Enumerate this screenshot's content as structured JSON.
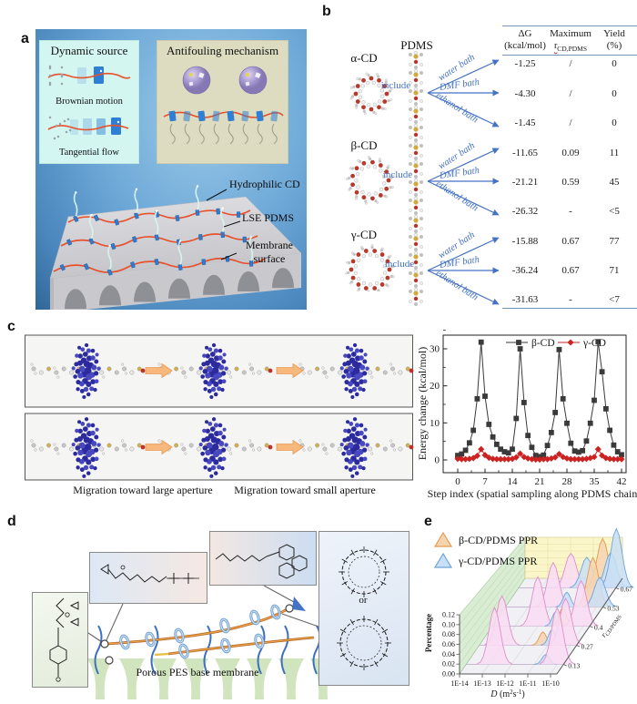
{
  "figure": {
    "panel_labels": {
      "a": "a",
      "b": "b",
      "c": "c",
      "d": "d",
      "e": "e"
    }
  },
  "panel_a": {
    "dynamic_box": {
      "title": "Dynamic source",
      "captions": [
        "Brownian motion",
        "Tangential flow"
      ]
    },
    "antifouling_box": {
      "title": "Antifouling mechanism"
    },
    "annotations": [
      "Hydrophilic CD",
      "LSE PDMS",
      "Membrane surface"
    ]
  },
  "panel_b": {
    "pdms_label": "PDMS",
    "include_label": "include",
    "cds": [
      {
        "name": "α-CD"
      },
      {
        "name": "β-CD"
      },
      {
        "name": "γ-CD"
      }
    ],
    "baths": [
      "water bath",
      "DMF bath",
      "ethanol bath"
    ],
    "table": {
      "col1_line1": "ΔG",
      "col1_line2": "(kcal/mol)",
      "col2_line1": "Maximum",
      "col2_sym": "r",
      "col2_sub": "CD,PDMS",
      "col3_line1": "Yield",
      "col3_line2": "(%)",
      "rows": [
        {
          "dg": "-1.25",
          "rmax": "/",
          "yield": "0"
        },
        {
          "dg": "-4.30",
          "rmax": "/",
          "yield": "0"
        },
        {
          "dg": "-1.45",
          "rmax": "/",
          "yield": "0"
        },
        {
          "dg": "-11.65",
          "rmax": "0.09",
          "yield": "11"
        },
        {
          "dg": "-21.21",
          "rmax": "0.59",
          "yield": "45"
        },
        {
          "dg": "-26.32",
          "rmax": "-",
          "yield": "<5"
        },
        {
          "dg": "-15.88",
          "rmax": "0.67",
          "yield": "77"
        },
        {
          "dg": "-36.24",
          "rmax": "0.67",
          "yield": "71"
        },
        {
          "dg": "-31.63",
          "rmax": "-",
          "yield": "<7"
        }
      ]
    }
  },
  "panel_c": {
    "captions": [
      "Migration toward large aperture",
      "Migration toward small aperture"
    ]
  },
  "panel_d": {
    "or_label": "or",
    "caption": "Porous PES base membrane"
  },
  "panel_e": {
    "legend": [
      {
        "label": "β-CD/PDMS PPR"
      },
      {
        "label": "γ-CD/PDMS PPR"
      }
    ]
  },
  "colors": {
    "arrow_blue": "#4472c4",
    "table_rule": "#7593bd",
    "spellcheck_red": "#cc3333",
    "cd_bead_blue": "#2f7fd4",
    "pdms_chain_red": "#e8502c",
    "membrane_gray": "#c9c9cd"
  },
  "chart_data": [
    {
      "panel": "c",
      "type": "line",
      "xlabel": "Step index (spatial sampling along PDMS chain)",
      "ylabel": "Energy change (kcal/mol)",
      "xticks": [
        0,
        7,
        14,
        21,
        28,
        35,
        42
      ],
      "yticks": [
        0,
        10,
        20,
        30
      ],
      "xlim": [
        -3.7,
        43.2
      ],
      "ylim": [
        -3.5,
        33.7
      ],
      "grid": false,
      "legend_position": "top-center",
      "series": [
        {
          "name": "β-CD",
          "color": "#3a3a3a",
          "marker": "square",
          "x_step": 1,
          "values": [
            1.2,
            1.6,
            2.6,
            4.6,
            8.0,
            16.5,
            31.8,
            17.2,
            9.6,
            6.2,
            4.2,
            2.9,
            2.2,
            1.9,
            2.9,
            11.2,
            30.0,
            15.5,
            6.6,
            3.4,
            1.2,
            0.9,
            1.3,
            3.9,
            7.4,
            12.8,
            29.8,
            16.5,
            9.9,
            4.5,
            2.4,
            2.1,
            2.5,
            5.1,
            9.9,
            16.1,
            31.9,
            23.8,
            13.8,
            8.0,
            4.0,
            2.2,
            1.4
          ]
        },
        {
          "name": "γ-CD",
          "color": "#cc2222",
          "marker": "diamond",
          "x_step": 1,
          "values": [
            0.3,
            0.2,
            0.2,
            0.3,
            0.5,
            1.1,
            2.9,
            1.3,
            0.6,
            0.3,
            0.2,
            0.2,
            0.2,
            0.2,
            0.3,
            0.7,
            1.7,
            0.8,
            0.4,
            0.2,
            0.1,
            0.1,
            0.2,
            0.2,
            0.4,
            0.7,
            1.6,
            0.8,
            0.4,
            0.2,
            0.2,
            0.2,
            0.2,
            0.3,
            0.5,
            0.8,
            2.9,
            1.2,
            0.5,
            0.3,
            0.2,
            0.2,
            0.2
          ]
        }
      ]
    },
    {
      "panel": "e",
      "type": "ridgeline-3d",
      "xlabel_parts": [
        [
          "D",
          "i"
        ],
        [
          " (m",
          ""
        ],
        [
          "2",
          "s"
        ],
        [
          "s",
          ""
        ],
        [
          "-1",
          "s"
        ],
        [
          ")",
          ""
        ]
      ],
      "ylabel": "Percentage",
      "zlabel_sym": "r",
      "zlabel_sub": "CD/PDMS",
      "x_ticks": [
        "1E-14",
        "1E-13",
        "1E-12",
        "1E-11",
        "1E-10"
      ],
      "y_ticks": [
        "0.00",
        "0.02",
        "0.04",
        "0.06",
        "0.08",
        "0.10",
        "0.12"
      ],
      "z_ticks": [
        "0.13",
        "0.27",
        "0.4",
        "0.53",
        "0.67"
      ],
      "series_colors": {
        "beta": {
          "fill": "#f6d4b0",
          "stroke": "#e39a55"
        },
        "gamma": {
          "fill": "#c9dff6",
          "stroke": "#6fa3d8"
        },
        "pink": {
          "fill": "#f9dcf2",
          "stroke": "#dd8fcb"
        }
      },
      "rows": [
        {
          "r": "0.13",
          "peaks": [
            {
              "logD": -12.75,
              "height": 0.115,
              "series": "pink"
            },
            {
              "logD": -10.5,
              "height": 0.02,
              "series": "gamma"
            },
            {
              "logD": -10.0,
              "height": 0.115,
              "series": "pink"
            }
          ]
        },
        {
          "r": "0.27",
          "peaks": [
            {
              "logD": -13.0,
              "height": 0.1,
              "series": "pink"
            },
            {
              "logD": -11.2,
              "height": 0.027,
              "series": "beta"
            },
            {
              "logD": -10.8,
              "height": 0.032,
              "series": "gamma"
            },
            {
              "logD": -10.2,
              "height": 0.095,
              "series": "pink"
            }
          ]
        },
        {
          "r": "0.4",
          "peaks": [
            {
              "logD": -12.0,
              "height": 0.1,
              "series": "pink"
            },
            {
              "logD": -11.2,
              "height": 0.03,
              "series": "gamma"
            },
            {
              "logD": -10.9,
              "height": 0.038,
              "series": "beta"
            },
            {
              "logD": -10.1,
              "height": 0.092,
              "series": "pink"
            }
          ]
        },
        {
          "r": "0.53",
          "peaks": [
            {
              "logD": -11.9,
              "height": 0.09,
              "series": "pink"
            },
            {
              "logD": -11.3,
              "height": 0.03,
              "series": "gamma"
            },
            {
              "logD": -10.15,
              "height": 0.1,
              "series": "beta"
            },
            {
              "logD": -9.85,
              "height": 0.06,
              "series": "gamma"
            }
          ]
        },
        {
          "r": "0.67",
          "peaks": [
            {
              "logD": -11.7,
              "height": 0.07,
              "series": "pink"
            },
            {
              "logD": -11.0,
              "height": 0.062,
              "series": "gamma"
            },
            {
              "logD": -10.3,
              "height": 0.1,
              "series": "beta"
            },
            {
              "logD": -9.95,
              "height": 0.072,
              "series": "gamma"
            },
            {
              "logD": -9.7,
              "height": 0.12,
              "series": "gamma"
            }
          ]
        }
      ]
    }
  ]
}
